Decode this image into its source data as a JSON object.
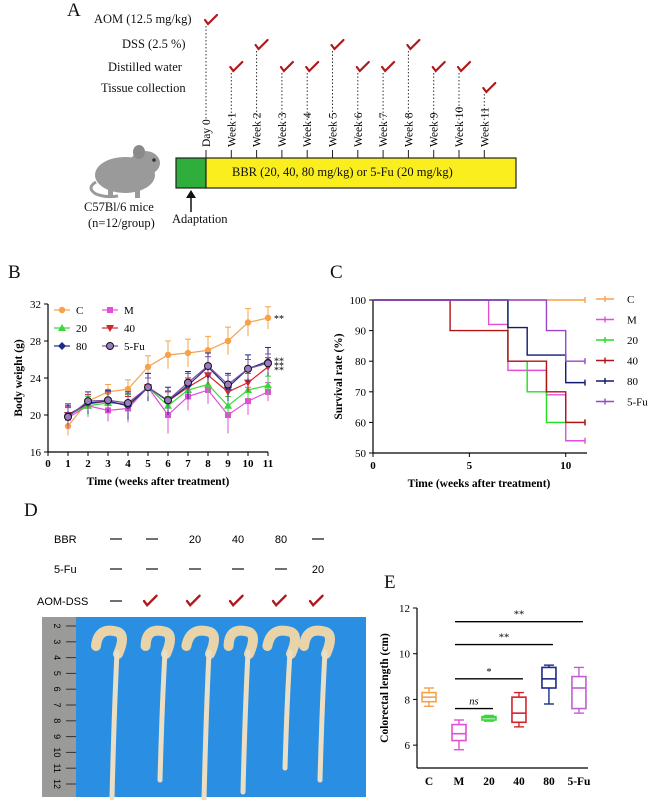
{
  "panelA": {
    "letter": "A",
    "rows": [
      "AOM (12.5 mg/kg)",
      "DSS (2.5 %)",
      "Distilled water",
      "Tissue collection"
    ],
    "weeks": [
      "Day 0",
      "Week 1",
      "Week 2",
      "Week 3",
      "Week 4",
      "Week 5",
      "Week 6",
      "Week 7",
      "Week 8",
      "Week 9",
      "Week 10",
      "Week 11"
    ],
    "check_rows": [
      0,
      2,
      1,
      2,
      2,
      1,
      2,
      2,
      1,
      2,
      2,
      3
    ],
    "bar_label": "BBR (20, 40, 80 mg/kg) or 5-Fu (20 mg/kg)",
    "mice_label_1": "C57Bl/6 mice",
    "mice_label_2": "(n=12/group)",
    "adaptation_label": "Adaptation",
    "colors": {
      "green": "#2fae3c",
      "yellow": "#fbee1e",
      "check": "#b0181c"
    }
  },
  "panelB": {
    "letter": "B",
    "sig": [
      "**",
      "**",
      "**",
      "**"
    ],
    "chart_data": {
      "type": "line",
      "xlabel": "Time (weeks after treatment)",
      "ylabel": "Body weight (g)",
      "xlim": [
        0,
        11
      ],
      "ylim": [
        16,
        32
      ],
      "xticks": [
        0,
        1,
        2,
        3,
        4,
        5,
        6,
        7,
        8,
        9,
        10,
        11
      ],
      "yticks": [
        16,
        20,
        24,
        28,
        32
      ],
      "x": [
        1,
        2,
        3,
        4,
        5,
        6,
        7,
        8,
        9,
        10,
        11
      ],
      "series": [
        {
          "name": "C",
          "color": "#f5a24b",
          "marker": "circle",
          "values": [
            18.8,
            21.5,
            22.5,
            22.8,
            25.2,
            26.5,
            26.7,
            27.0,
            28.0,
            30.0,
            30.5
          ],
          "err": [
            1.0,
            1.0,
            0.8,
            1.0,
            1.2,
            1.5,
            1.5,
            1.5,
            1.5,
            1.5,
            1.2
          ]
        },
        {
          "name": "M",
          "color": "#e24fd7",
          "marker": "square",
          "values": [
            19.7,
            21.0,
            20.5,
            20.7,
            23.0,
            20.0,
            22.0,
            22.7,
            20.0,
            21.5,
            22.5
          ],
          "err": [
            1.2,
            1.2,
            1.2,
            1.5,
            1.5,
            2.0,
            1.5,
            1.5,
            2.0,
            1.5,
            1.0
          ]
        },
        {
          "name": "20",
          "color": "#3bd63b",
          "marker": "triangle",
          "values": [
            20.0,
            21.0,
            21.3,
            21.2,
            23.0,
            21.0,
            22.7,
            23.3,
            21.0,
            22.7,
            23.2
          ],
          "err": [
            1.0,
            1.0,
            1.0,
            1.0,
            1.0,
            1.0,
            1.0,
            1.0,
            1.0,
            1.0,
            1.0
          ]
        },
        {
          "name": "40",
          "color": "#d4242b",
          "marker": "triangle-down",
          "values": [
            20.0,
            21.2,
            21.5,
            21.0,
            23.0,
            21.5,
            23.0,
            24.3,
            22.5,
            23.5,
            25.2
          ],
          "err": [
            1.0,
            1.0,
            1.0,
            1.0,
            1.0,
            1.0,
            1.0,
            1.0,
            1.0,
            1.0,
            1.0
          ]
        },
        {
          "name": "80",
          "color": "#1c2a8c",
          "marker": "diamond",
          "values": [
            20.0,
            21.3,
            21.5,
            21.0,
            23.0,
            21.5,
            23.2,
            25.2,
            23.0,
            25.0,
            25.8
          ],
          "err": [
            1.2,
            1.2,
            1.2,
            1.5,
            1.5,
            1.5,
            1.5,
            1.5,
            1.5,
            1.5,
            1.5
          ]
        },
        {
          "name": "5-Fu",
          "color": "#7b4fa0",
          "marker": "circle-open",
          "values": [
            19.8,
            21.5,
            21.6,
            21.3,
            23.0,
            21.6,
            23.5,
            25.3,
            23.3,
            25.0,
            25.6
          ],
          "err": [
            1.0,
            1.0,
            1.0,
            1.0,
            1.0,
            1.0,
            1.0,
            1.0,
            1.0,
            1.0,
            1.0
          ]
        }
      ]
    }
  },
  "panelC": {
    "letter": "C",
    "chart_data": {
      "type": "line",
      "xlabel": "Time (weeks after treatment)",
      "ylabel": "Survival rate (%)",
      "xlim": [
        0,
        11
      ],
      "ylim": [
        50,
        100
      ],
      "xticks": [
        0,
        5,
        10
      ],
      "yticks": [
        50,
        60,
        70,
        80,
        90,
        100
      ],
      "series": [
        {
          "name": "C",
          "color": "#f5a24b",
          "steps": [
            [
              0,
              100
            ],
            [
              11,
              100
            ]
          ]
        },
        {
          "name": "M",
          "color": "#e24fd7",
          "steps": [
            [
              0,
              100
            ],
            [
              6,
              100
            ],
            [
              6,
              92
            ],
            [
              7,
              92
            ],
            [
              7,
              77
            ],
            [
              9,
              77
            ],
            [
              9,
              69
            ],
            [
              10,
              69
            ],
            [
              10,
              54
            ],
            [
              11,
              54
            ]
          ]
        },
        {
          "name": "20",
          "color": "#22dd22",
          "steps": [
            [
              0,
              100
            ],
            [
              7,
              100
            ],
            [
              7,
              80
            ],
            [
              8,
              80
            ],
            [
              8,
              70
            ],
            [
              9,
              70
            ],
            [
              9,
              60
            ],
            [
              11,
              60
            ]
          ]
        },
        {
          "name": "40",
          "color": "#b01414",
          "steps": [
            [
              0,
              100
            ],
            [
              4,
              100
            ],
            [
              4,
              90
            ],
            [
              7,
              90
            ],
            [
              7,
              80
            ],
            [
              9,
              80
            ],
            [
              9,
              70
            ],
            [
              10,
              70
            ],
            [
              10,
              60
            ],
            [
              11,
              60
            ]
          ]
        },
        {
          "name": "80",
          "color": "#101a6e",
          "steps": [
            [
              0,
              100
            ],
            [
              7,
              100
            ],
            [
              7,
              91
            ],
            [
              8,
              91
            ],
            [
              8,
              82
            ],
            [
              10,
              82
            ],
            [
              10,
              73
            ],
            [
              11,
              73
            ]
          ]
        },
        {
          "name": "5-Fu",
          "color": "#9a46c8",
          "steps": [
            [
              0,
              100
            ],
            [
              9,
              100
            ],
            [
              9,
              90
            ],
            [
              10,
              90
            ],
            [
              10,
              80
            ],
            [
              11,
              80
            ]
          ]
        }
      ]
    }
  },
  "panelD": {
    "letter": "D",
    "rows": [
      {
        "label": "BBR",
        "cells": [
          "—",
          "—",
          "20",
          "40",
          "80",
          "—"
        ]
      },
      {
        "label": "5-Fu",
        "cells": [
          "—",
          "—",
          "—",
          "—",
          "—",
          "20"
        ]
      },
      {
        "label": "AOM-DSS",
        "cells": [
          "—",
          "check",
          "check",
          "check",
          "check",
          "check"
        ]
      }
    ],
    "ruler_numbers": [
      "2",
      "3",
      "4",
      "5",
      "6",
      "7",
      "8",
      "9",
      "10",
      "11",
      "12"
    ]
  },
  "panelE": {
    "letter": "E",
    "sig": [
      {
        "label": "**"
      },
      {
        "label": "**"
      },
      {
        "label": "*"
      },
      {
        "label": "ns"
      }
    ],
    "chart_data": {
      "type": "box",
      "ylabel": "Colorectal length (cm)",
      "categories": [
        "C",
        "M",
        "20",
        "40",
        "80",
        "5-Fu"
      ],
      "ylim": [
        5,
        12
      ],
      "yticks": [
        6,
        8,
        10,
        12
      ],
      "boxes": [
        {
          "name": "C",
          "color": "#f5a24b",
          "min": 7.7,
          "q1": 7.9,
          "median": 8.1,
          "q3": 8.3,
          "max": 8.5
        },
        {
          "name": "M",
          "color": "#e24fd7",
          "min": 5.8,
          "q1": 6.2,
          "median": 6.5,
          "q3": 6.9,
          "max": 7.1
        },
        {
          "name": "20",
          "color": "#3bd63b",
          "min": 7.05,
          "q1": 7.1,
          "median": 7.2,
          "q3": 7.25,
          "max": 7.3
        },
        {
          "name": "40",
          "color": "#d4242b",
          "min": 6.8,
          "q1": 7.0,
          "median": 7.4,
          "q3": 8.1,
          "max": 8.3
        },
        {
          "name": "80",
          "color": "#1c2a8c",
          "min": 7.8,
          "q1": 8.5,
          "median": 8.9,
          "q3": 9.4,
          "max": 9.5
        },
        {
          "name": "5-Fu",
          "color": "#c060d0",
          "min": 7.4,
          "q1": 7.6,
          "median": 8.5,
          "q3": 9.0,
          "max": 9.4
        }
      ]
    }
  }
}
